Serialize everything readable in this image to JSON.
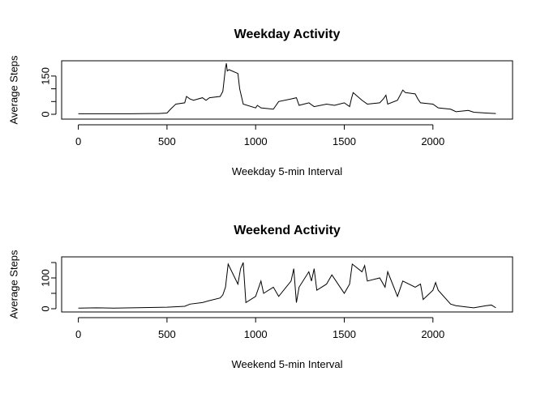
{
  "chart_data": [
    {
      "type": "line",
      "title": "Weekday Activity",
      "xlabel": "Weekday 5-min Interval",
      "ylabel": "Average Steps",
      "x": [
        0,
        100,
        200,
        300,
        400,
        450,
        500,
        520,
        550,
        600,
        610,
        630,
        650,
        700,
        720,
        740,
        800,
        815,
        830,
        835,
        840,
        850,
        900,
        910,
        920,
        930,
        1000,
        1010,
        1030,
        1100,
        1130,
        1200,
        1230,
        1245,
        1300,
        1330,
        1400,
        1445,
        1500,
        1530,
        1540,
        1550,
        1600,
        1630,
        1700,
        1720,
        1735,
        1745,
        1800,
        1830,
        1845,
        1900,
        1915,
        1930,
        2000,
        2030,
        2100,
        2130,
        2200,
        2230,
        2300,
        2355
      ],
      "series": [
        {
          "name": "Weekday",
          "color": "#000000",
          "values": [
            2,
            2,
            2,
            2,
            3,
            3,
            5,
            20,
            40,
            45,
            70,
            60,
            55,
            65,
            55,
            65,
            70,
            90,
            182,
            200,
            170,
            175,
            160,
            100,
            70,
            40,
            25,
            35,
            25,
            20,
            50,
            60,
            65,
            35,
            45,
            30,
            40,
            35,
            45,
            30,
            60,
            85,
            55,
            40,
            45,
            60,
            75,
            40,
            55,
            95,
            85,
            80,
            60,
            45,
            40,
            25,
            20,
            10,
            15,
            8,
            5,
            3
          ]
        }
      ],
      "xlim": [
        -94.2,
        2449.2
      ],
      "ylim": [
        -19,
        210
      ],
      "xticks": [
        0,
        500,
        1000,
        1500,
        2000
      ],
      "yticks": [
        0,
        150
      ],
      "minor_yticks": [
        50,
        100
      ]
    },
    {
      "type": "line",
      "title": "Weekend Activity",
      "xlabel": "Weekend 5-min Interval",
      "ylabel": "Average Steps",
      "x": [
        0,
        100,
        200,
        300,
        400,
        500,
        600,
        630,
        700,
        730,
        800,
        815,
        830,
        845,
        900,
        915,
        930,
        945,
        1000,
        1030,
        1045,
        1100,
        1130,
        1200,
        1215,
        1230,
        1245,
        1300,
        1315,
        1330,
        1345,
        1400,
        1430,
        1500,
        1530,
        1545,
        1600,
        1615,
        1630,
        1700,
        1730,
        1745,
        1800,
        1830,
        1900,
        1930,
        1945,
        2000,
        2015,
        2030,
        2100,
        2130,
        2200,
        2230,
        2300,
        2330,
        2355
      ],
      "series": [
        {
          "name": "Weekend",
          "color": "#000000",
          "values": [
            2,
            3,
            2,
            3,
            4,
            5,
            8,
            15,
            20,
            25,
            35,
            45,
            70,
            145,
            80,
            130,
            150,
            20,
            40,
            90,
            50,
            70,
            40,
            90,
            130,
            20,
            70,
            120,
            90,
            130,
            60,
            80,
            110,
            50,
            80,
            145,
            120,
            140,
            90,
            100,
            70,
            120,
            40,
            90,
            70,
            80,
            30,
            60,
            85,
            60,
            15,
            10,
            5,
            3,
            10,
            12,
            3
          ]
        }
      ],
      "xlim": [
        -94.2,
        2449.2
      ],
      "ylim": [
        -10.5,
        168.4
      ],
      "xticks": [
        0,
        500,
        1000,
        1500,
        2000
      ],
      "yticks": [
        0,
        100
      ],
      "minor_yticks": [
        50,
        150
      ]
    }
  ]
}
